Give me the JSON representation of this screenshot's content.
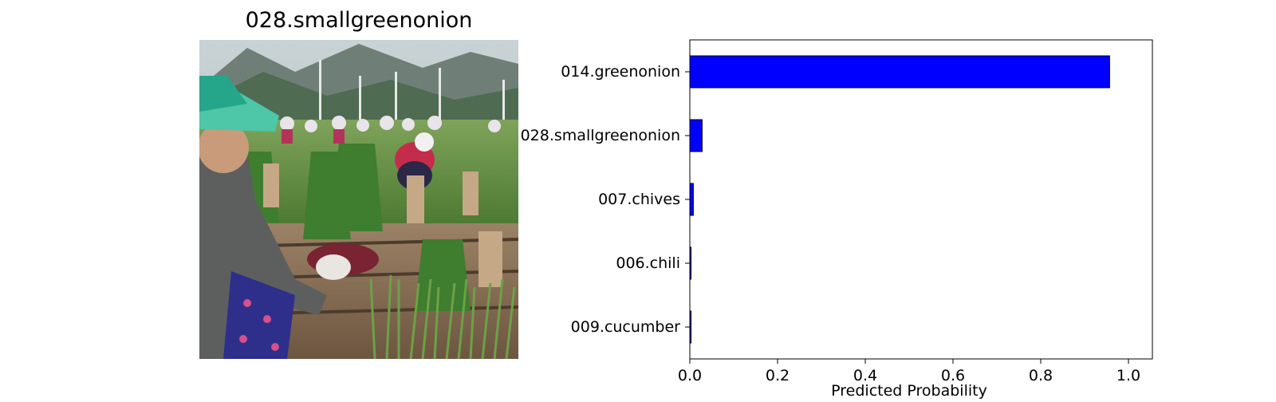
{
  "image_panel": {
    "title": "028.smallgreenonion"
  },
  "chart_data": {
    "type": "bar",
    "orientation": "horizontal",
    "categories": [
      "014.greenonion",
      "028.smallgreenonion",
      "007.chives",
      "006.chili",
      "009.cucumber"
    ],
    "values": [
      0.957,
      0.028,
      0.008,
      0.002,
      0.002
    ],
    "xlabel": "Predicted Probability",
    "ylabel": "",
    "xlim": [
      0.0,
      1.0
    ],
    "xticks": [
      "0.0",
      "0.2",
      "0.4",
      "0.6",
      "0.8",
      "1.0"
    ],
    "bar_color": "#0000ff",
    "edge_color": "#000000",
    "grid": false
  }
}
